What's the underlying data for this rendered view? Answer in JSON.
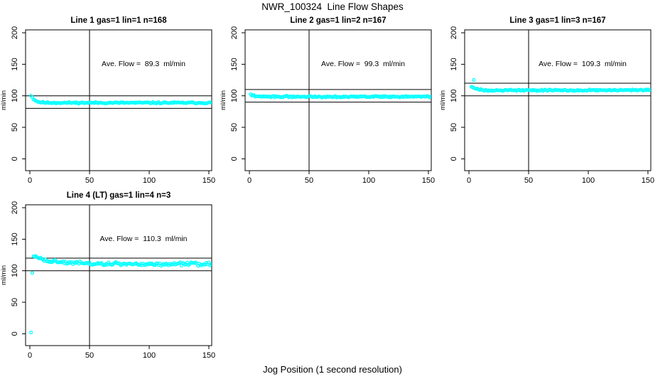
{
  "figure": {
    "title": "NWR_100324  Line Flow Shapes",
    "xlabel": "Jog Position (1 second resolution)",
    "background": "#ffffff",
    "axis_color": "#000000",
    "point_color": "#00FFFF"
  },
  "chart_data": [
    {
      "type": "scatter",
      "title": "Line 1 gas=1 lin=1 n=168",
      "ave_flow_label": "Ave. Flow =  89.3  ml/min",
      "ave_flow_ml_min": 89.3,
      "ylabel": "ml/min",
      "x_ticks": [
        0,
        50,
        100,
        150
      ],
      "y_ticks": [
        0,
        50,
        100,
        150,
        200
      ],
      "xlim": [
        -3.6,
        152.4
      ],
      "ylim": [
        -18.8,
        204.6
      ],
      "vline_x": 50,
      "ref_lines": [
        100,
        80
      ],
      "series_model": {
        "x_start": 1,
        "x_end": 152,
        "start_value": 101,
        "flat_value": 88.9,
        "decay_tau": 3.0,
        "noise": 0.7,
        "seed": 11
      },
      "outliers": [],
      "point_color": "#00FFFF"
    },
    {
      "type": "scatter",
      "title": "Line 2 gas=1 lin=2 n=167",
      "ave_flow_label": "Ave. Flow =  99.3  ml/min",
      "ave_flow_ml_min": 99.3,
      "ylabel": "ml/min",
      "x_ticks": [
        0,
        50,
        100,
        150
      ],
      "y_ticks": [
        0,
        50,
        100,
        150,
        200
      ],
      "xlim": [
        -3.6,
        152.4
      ],
      "ylim": [
        -18.8,
        204.6
      ],
      "vline_x": 50,
      "ref_lines": [
        110,
        90
      ],
      "series_model": {
        "x_start": 1,
        "x_end": 152,
        "start_value": 102.5,
        "flat_value": 98.6,
        "decay_tau": 2.2,
        "noise": 0.7,
        "seed": 22
      },
      "outliers": [],
      "point_color": "#00FFFF"
    },
    {
      "type": "scatter",
      "title": "Line 3 gas=1 lin=3 n=167",
      "ave_flow_label": "Ave. Flow =  109.3  ml/min",
      "ave_flow_ml_min": 109.3,
      "ylabel": "ml/min",
      "x_ticks": [
        0,
        50,
        100,
        150
      ],
      "y_ticks": [
        0,
        50,
        100,
        150,
        200
      ],
      "xlim": [
        -3.6,
        152.4
      ],
      "ylim": [
        -18.8,
        204.6
      ],
      "vline_x": 50,
      "ref_lines": [
        120,
        100
      ],
      "series_model": {
        "x_start": 2,
        "x_end": 152,
        "start_value": 115,
        "flat_value": 108.8,
        "decay_tau": 3.5,
        "noise": 0.7,
        "seed": 33
      },
      "outliers": [
        [
          4,
          125
        ]
      ],
      "point_color": "#00FFFF"
    },
    {
      "type": "scatter",
      "title": "Line 4 (LT) gas=1 lin=4 n=3",
      "ave_flow_label": "Ave. Flow =  110.3  ml/min",
      "ave_flow_ml_min": 110.3,
      "ylabel": "ml/min",
      "x_ticks": [
        0,
        50,
        100,
        150
      ],
      "y_ticks": [
        0,
        50,
        100,
        150,
        200
      ],
      "xlim": [
        -3.6,
        152.4
      ],
      "ylim": [
        -18.8,
        204.6
      ],
      "vline_x": 50,
      "ref_lines": [
        120,
        100
      ],
      "series_model": {
        "x_start": 3,
        "x_end": 152,
        "start_value": 123,
        "flat_value": 110.5,
        "decay_tau": 16,
        "noise": 1.6,
        "seed": 44
      },
      "outliers": [
        [
          1,
          2
        ],
        [
          2,
          96.5
        ]
      ],
      "point_color": "#00FFFF"
    }
  ]
}
